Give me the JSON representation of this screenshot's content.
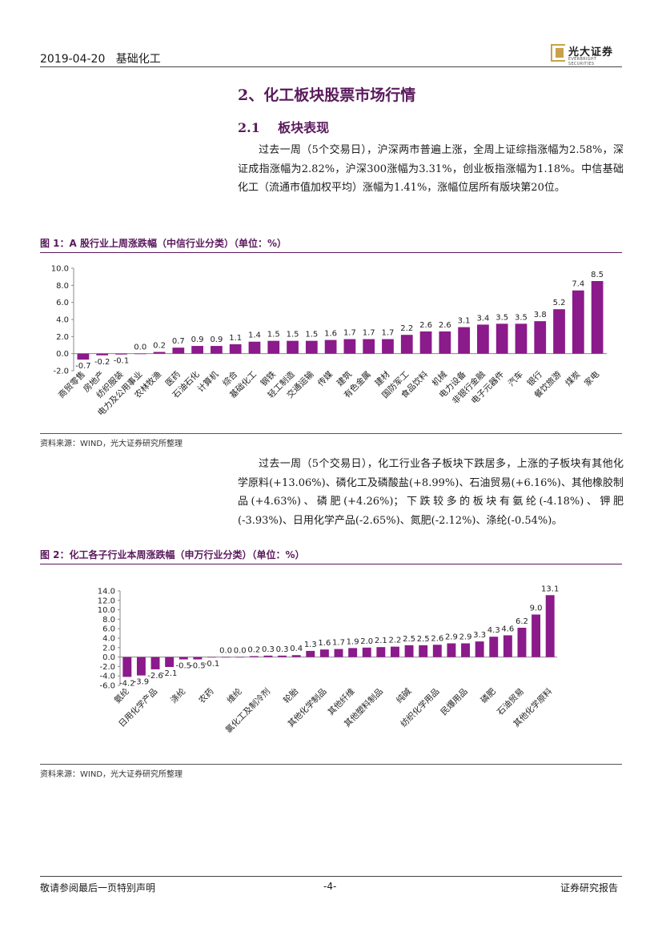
{
  "header": {
    "date": "2019-04-20",
    "category": "基础化工",
    "logo_text": "光大证券",
    "logo_sub": "EVERBRIGHT SECURITIES"
  },
  "section": {
    "title": "2、化工板块股票市场行情",
    "subtitle_num": "2.1",
    "subtitle": "板块表现"
  },
  "paragraph1": "过去一周（5个交易日），沪深两市普遍上涨，全周上证综指涨幅为2.58%，深证成指涨幅为2.82%，沪深300涨幅为3.31%，创业板指涨幅为1.18%。中信基础化工（流通市值加权平均）涨幅为1.41%，涨幅位居所有版块第20位。",
  "paragraph2": "过去一周（5个交易日），化工行业各子板块下跌居多，上涨的子板块有其他化学原料(+13.06%)、磷化工及磷酸盐(+8.99%)、石油贸易(+6.16%)、其他橡胶制品(+4.63%)、磷肥(+4.26%)；下跌较多的板块有氨纶(-4.18%)、钾肥(-3.93%)、日用化学产品(-2.65%)、氮肥(-2.12%)、涤纶(-0.54%)。",
  "figure1": {
    "title": "图 1：A 股行业上周涨跌幅（中信行业分类）（单位：%）",
    "source": "资料来源：WIND，光大证券研究所整理"
  },
  "figure2": {
    "title": "图 2：化工各子行业本周涨跌幅（申万行业分类）（单位：%）",
    "source": "资料来源：WIND，光大证券研究所整理"
  },
  "chart_data": [
    {
      "type": "bar",
      "color": "#8b1a8b",
      "ylim": [
        -2.0,
        10.0
      ],
      "yticks": [
        "-2.0",
        "0.0",
        "2.0",
        "4.0",
        "6.0",
        "8.0",
        "10.0"
      ],
      "categories": [
        "商贸零售",
        "房地产",
        "纺织服装",
        "电力及公用事业",
        "农林牧渔",
        "医药",
        "石油石化",
        "计算机",
        "综合",
        "基础化工",
        "钢铁",
        "轻工制造",
        "交通运输",
        "传媒",
        "建筑",
        "有色金属",
        "建材",
        "国防军工",
        "食品饮料",
        "机械",
        "电力设备",
        "非银行金融",
        "电子元器件",
        "汽车",
        "银行",
        "餐饮旅游",
        "煤炭",
        "家电"
      ],
      "values": [
        -0.7,
        -0.2,
        -0.1,
        0.0,
        0.2,
        0.7,
        0.9,
        0.9,
        1.1,
        1.4,
        1.5,
        1.5,
        1.5,
        1.6,
        1.7,
        1.7,
        1.7,
        2.2,
        2.6,
        2.6,
        3.1,
        3.4,
        3.5,
        3.5,
        3.8,
        5.2,
        7.4,
        8.5
      ],
      "labels": [
        "-0.7",
        "-0.2",
        "-0.1",
        "0.0",
        "0.2",
        "0.7",
        "0.9",
        "0.9",
        "1.1",
        "1.4",
        "1.5",
        "1.5",
        "1.5",
        "1.6",
        "1.7",
        "1.7",
        "1.7",
        "2.2",
        "2.6",
        "2.6",
        "3.1",
        "3.4",
        "3.5",
        "3.5",
        "3.8",
        "5.2",
        "7.4",
        "8.5"
      ]
    },
    {
      "type": "bar",
      "color": "#8b1a8b",
      "ylim": [
        -6.0,
        14.0
      ],
      "yticks": [
        "-6.0",
        "-4.0",
        "-2.0",
        "0.0",
        "2.0",
        "4.0",
        "6.0",
        "8.0",
        "10.0",
        "12.0",
        "14.0"
      ],
      "categories": [
        "氨纶",
        "",
        "日用化学产品",
        "",
        "涤纶",
        "",
        "农药",
        "",
        "维纶",
        "",
        "氯化工及制冷剂",
        "",
        "轮胎",
        "",
        "其他化学制品",
        "",
        "其他纤维",
        "",
        "其他塑料制品",
        "",
        "纯碱",
        "",
        "纺织化学用品",
        "",
        "民爆用品",
        "",
        "磷肥",
        "",
        "石油贸易",
        "",
        "其他化学原料"
      ],
      "values": [
        -4.2,
        -3.9,
        -2.6,
        -2.1,
        -0.5,
        -0.5,
        -0.1,
        0.0,
        0.0,
        0.2,
        0.3,
        0.3,
        0.4,
        1.3,
        1.6,
        1.7,
        1.9,
        2.0,
        2.1,
        2.2,
        2.5,
        2.5,
        2.6,
        2.9,
        2.9,
        3.3,
        4.3,
        4.6,
        6.2,
        9.0,
        13.1
      ],
      "labels": [
        "-4.2",
        "-3.9",
        "-2.6",
        "-2.1",
        "-0.5",
        "-0.5",
        "-0.1",
        "0.0",
        "0.0",
        "0.2",
        "0.3",
        "0.3",
        "0.4",
        "1.3",
        "1.6",
        "1.7",
        "1.9",
        "2.0",
        "2.1",
        "2.2",
        "2.5",
        "2.5",
        "2.6",
        "2.9",
        "2.9",
        "3.3",
        "4.3",
        "4.6",
        "6.2",
        "9.0",
        "13.1"
      ]
    }
  ],
  "footer": {
    "left": "敬请参阅最后一页特别声明",
    "page": "-4-",
    "right": "证券研究报告"
  }
}
